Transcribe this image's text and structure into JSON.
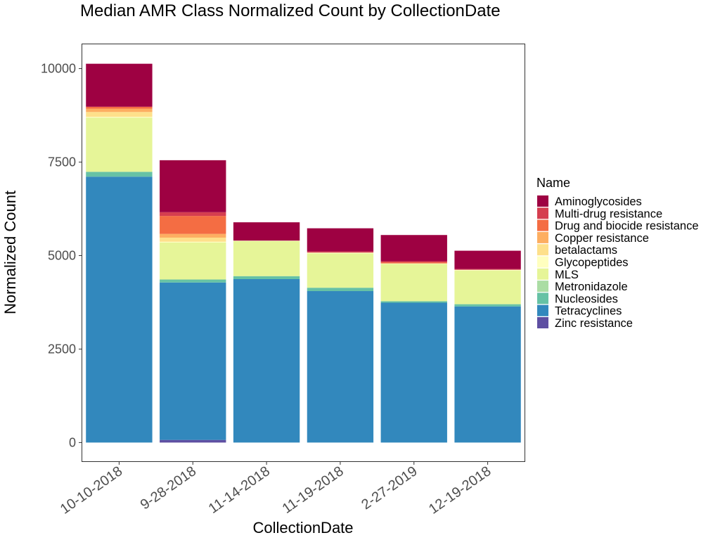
{
  "chart_data": {
    "type": "bar",
    "stacked": true,
    "title": "Median AMR Class Normalized Count by CollectionDate",
    "xlabel": "CollectionDate",
    "ylabel": "Normalized Count",
    "ylim": [
      -500,
      10650
    ],
    "yticks": [
      0,
      2500,
      5000,
      7500,
      10000
    ],
    "grid": false,
    "legend_title": "Name",
    "legend_position": "right",
    "categories": [
      "10-10-2018",
      "9-28-2018",
      "11-14-2018",
      "11-19-2018",
      "2-27-2019",
      "12-19-2018"
    ],
    "series": [
      {
        "name": "Zinc resistance",
        "color": "#5E4FA2",
        "values": [
          0,
          70,
          0,
          0,
          0,
          0
        ]
      },
      {
        "name": "Tetracyclines",
        "color": "#3288BD",
        "values": [
          7110,
          4210,
          4370,
          4050,
          3740,
          3640
        ]
      },
      {
        "name": "Nucleosides",
        "color": "#66C2A5",
        "values": [
          130,
          80,
          80,
          90,
          40,
          60
        ]
      },
      {
        "name": "Metronidazole",
        "color": "#ABDDA4",
        "values": [
          0,
          0,
          0,
          0,
          0,
          0
        ]
      },
      {
        "name": "MLS",
        "color": "#E6F598",
        "values": [
          1450,
          990,
          940,
          920,
          1000,
          900
        ]
      },
      {
        "name": "Glycopeptides",
        "color": "#FFFFBF",
        "values": [
          20,
          20,
          10,
          20,
          10,
          20
        ]
      },
      {
        "name": "betalactams",
        "color": "#FEE08B",
        "values": [
          130,
          110,
          0,
          0,
          0,
          0
        ]
      },
      {
        "name": "Copper resistance",
        "color": "#FDAE61",
        "values": [
          90,
          100,
          0,
          0,
          0,
          0
        ]
      },
      {
        "name": "Drug and biocide resistance",
        "color": "#F46D43",
        "values": [
          50,
          480,
          0,
          0,
          30,
          0
        ]
      },
      {
        "name": "Multi-drug resistance",
        "color": "#D53E4F",
        "values": [
          0,
          100,
          0,
          30,
          30,
          20
        ]
      },
      {
        "name": "Aminoglycosides",
        "color": "#9E0142",
        "values": [
          1150,
          1390,
          490,
          620,
          700,
          490
        ]
      }
    ],
    "legend_order": [
      "Aminoglycosides",
      "Multi-drug resistance",
      "Drug and biocide resistance",
      "Copper resistance",
      "betalactams",
      "Glycopeptides",
      "MLS",
      "Metronidazole",
      "Nucleosides",
      "Tetracyclines",
      "Zinc resistance"
    ]
  }
}
